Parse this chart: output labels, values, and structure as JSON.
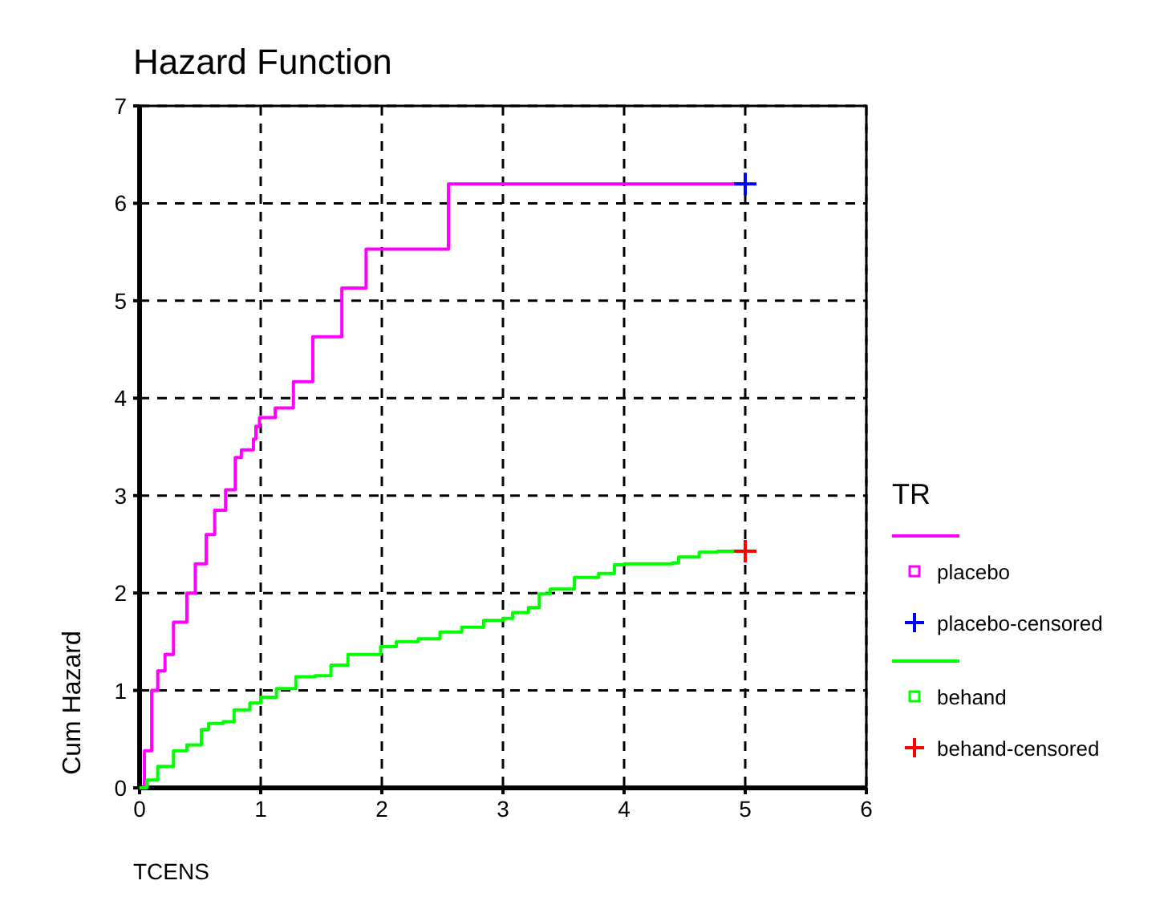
{
  "chart_data": {
    "type": "step",
    "title": "Hazard Function",
    "xlabel": "TCENS",
    "ylabel": "Cum Hazard",
    "legend_title": "TR",
    "legend": "right",
    "grid": true,
    "xlim": [
      0,
      6
    ],
    "xticks": [
      0,
      1,
      2,
      3,
      4,
      5,
      6
    ],
    "ylim": [
      0,
      7
    ],
    "yticks": [
      0,
      1,
      2,
      3,
      4,
      5,
      6,
      7
    ],
    "series": [
      {
        "name": "placebo",
        "color": "#ff00ff",
        "x": [
          0,
          0.04,
          0.1,
          0.15,
          0.21,
          0.28,
          0.39,
          0.46,
          0.55,
          0.62,
          0.71,
          0.79,
          0.84,
          0.94,
          0.96,
          0.99,
          1.12,
          1.27,
          1.43,
          1.67,
          1.87,
          2.55,
          5
        ],
        "values": [
          0,
          0.38,
          1.0,
          1.2,
          1.37,
          1.7,
          2.0,
          2.3,
          2.6,
          2.85,
          3.06,
          3.39,
          3.47,
          3.58,
          3.71,
          3.8,
          3.9,
          4.17,
          4.63,
          5.13,
          5.53,
          6.2,
          6.2
        ]
      },
      {
        "name": "placebo-censored",
        "type": "scatter",
        "marker": "cross",
        "color": "#0000ff",
        "x": [
          5
        ],
        "values": [
          6.2
        ]
      },
      {
        "name": "behand",
        "color": "#00ff00",
        "x": [
          0,
          0.06,
          0.15,
          0.28,
          0.39,
          0.51,
          0.57,
          0.69,
          0.78,
          0.91,
          1.0,
          1.13,
          1.29,
          1.45,
          1.58,
          1.72,
          1.85,
          1.99,
          2.12,
          2.3,
          2.48,
          2.66,
          2.84,
          3.0,
          3.08,
          3.21,
          3.3,
          3.39,
          3.59,
          3.79,
          3.92,
          4.0,
          4.4,
          4.45,
          4.62,
          4.77,
          5
        ],
        "values": [
          0,
          0.08,
          0.22,
          0.38,
          0.44,
          0.6,
          0.66,
          0.68,
          0.8,
          0.87,
          0.93,
          1.02,
          1.14,
          1.15,
          1.26,
          1.37,
          1.37,
          1.45,
          1.5,
          1.53,
          1.6,
          1.65,
          1.72,
          1.74,
          1.8,
          1.85,
          1.99,
          2.04,
          2.16,
          2.2,
          2.29,
          2.3,
          2.31,
          2.37,
          2.42,
          2.43,
          2.43
        ]
      },
      {
        "name": "behand-censored",
        "type": "scatter",
        "marker": "cross",
        "color": "#ff0000",
        "x": [
          5
        ],
        "values": [
          2.43
        ]
      }
    ]
  }
}
